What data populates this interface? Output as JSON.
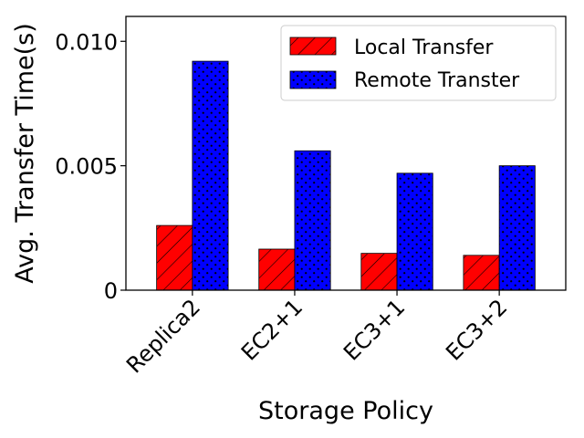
{
  "chart_data": {
    "type": "bar",
    "xlabel": "Storage Policy",
    "ylabel": "Avg. Transfer Time(s)",
    "categories": [
      "Replica2",
      "EC2+1",
      "EC3+1",
      "EC3+2"
    ],
    "series": [
      {
        "name": "Local Transfer",
        "values": [
          0.0026,
          0.00165,
          0.00148,
          0.0014
        ],
        "color": "#ff0000",
        "pattern": "diagonal-hatch"
      },
      {
        "name": "Remote Transter",
        "values": [
          0.0092,
          0.0056,
          0.0047,
          0.005
        ],
        "color": "#0000ff",
        "pattern": "dots"
      }
    ],
    "yticks": [
      {
        "value": 0,
        "label": "0"
      },
      {
        "value": 0.005,
        "label": "0.005"
      },
      {
        "value": 0.01,
        "label": "0.010"
      }
    ],
    "ylim": [
      0,
      0.011
    ],
    "grid": false,
    "legend_position": "top-right"
  }
}
